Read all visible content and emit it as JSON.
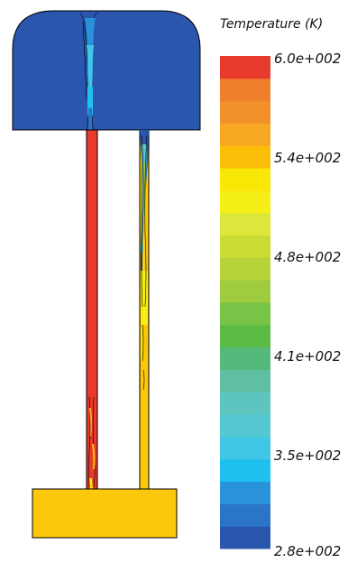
{
  "legend": {
    "title": "Temperature (K)",
    "ticks": [
      "6.0e+002",
      "5.4e+002",
      "4.8e+002",
      "4.1e+002",
      "3.5e+002",
      "2.8e+002"
    ],
    "range": [
      280,
      600
    ],
    "colors": [
      "#2a56ad",
      "#2a75c8",
      "#2a92da",
      "#1ec0ee",
      "#41c6e6",
      "#55c9d1",
      "#5ec4bf",
      "#60bea3",
      "#55b97b",
      "#5cbb45",
      "#77c447",
      "#9fcc3f",
      "#b6d43a",
      "#c8dc34",
      "#dde63b",
      "#f6ee17",
      "#f9e705",
      "#fcbe06",
      "#f7a822",
      "#f2912a",
      "#ef7e2d",
      "#e73a2c"
    ]
  },
  "regions": {
    "upper_plenum_color": "#2a56ad",
    "lower_plenum_color": "#fcc80b",
    "hot_leg_color": "#e73a2c",
    "cold_leg_color": "#fcc80b"
  }
}
